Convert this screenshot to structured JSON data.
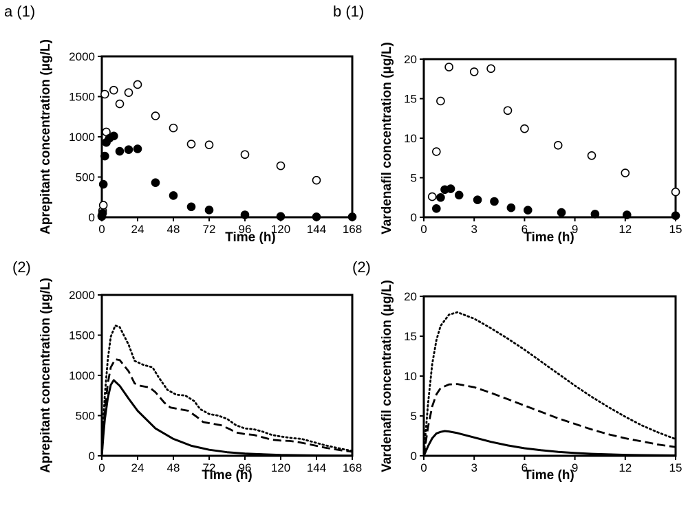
{
  "figure": {
    "panel_a1": "a (1)",
    "panel_b1": "b (1)",
    "panel_a2": "(2)",
    "panel_b2": "(2)"
  },
  "chart_data": [
    {
      "id": "a1",
      "type": "scatter",
      "xlabel": "Time (h)",
      "ylabel": "Aprepitant concentration (μg/L)",
      "xlim": [
        0,
        168
      ],
      "ylim": [
        0,
        2000
      ],
      "xticks": [
        0,
        24,
        48,
        72,
        96,
        120,
        144,
        168
      ],
      "yticks": [
        0,
        500,
        1000,
        1500,
        2000
      ],
      "grid": false,
      "series": [
        {
          "marker": "open-circle",
          "points": [
            [
              0,
              20
            ],
            [
              0.5,
              80
            ],
            [
              1,
              150
            ],
            [
              2,
              1530
            ],
            [
              3,
              1060
            ],
            [
              8,
              1580
            ],
            [
              12,
              1410
            ],
            [
              18,
              1550
            ],
            [
              24,
              1650
            ],
            [
              36,
              1260
            ],
            [
              48,
              1110
            ],
            [
              60,
              910
            ],
            [
              72,
              900
            ],
            [
              96,
              780
            ],
            [
              120,
              640
            ],
            [
              144,
              460
            ]
          ]
        },
        {
          "marker": "filled-circle",
          "points": [
            [
              0,
              10
            ],
            [
              0.5,
              50
            ],
            [
              1,
              410
            ],
            [
              2,
              760
            ],
            [
              3,
              930
            ],
            [
              5,
              980
            ],
            [
              8,
              1010
            ],
            [
              12,
              820
            ],
            [
              18,
              840
            ],
            [
              24,
              850
            ],
            [
              36,
              430
            ],
            [
              48,
              270
            ],
            [
              60,
              130
            ],
            [
              72,
              90
            ],
            [
              96,
              30
            ],
            [
              120,
              10
            ],
            [
              144,
              5
            ],
            [
              168,
              5
            ]
          ]
        }
      ]
    },
    {
      "id": "b1",
      "type": "scatter",
      "xlabel": "Time (h)",
      "ylabel": "Vardenafil concentration (μg/L)",
      "xlim": [
        0,
        15
      ],
      "ylim": [
        0,
        20
      ],
      "xticks": [
        0,
        3,
        6,
        9,
        12,
        15
      ],
      "yticks": [
        0,
        5,
        10,
        15,
        20
      ],
      "grid": false,
      "series": [
        {
          "marker": "open-circle",
          "points": [
            [
              0.5,
              2.6
            ],
            [
              0.75,
              8.3
            ],
            [
              1,
              14.7
            ],
            [
              1.5,
              19.0
            ],
            [
              3,
              18.4
            ],
            [
              4,
              18.8
            ],
            [
              5,
              13.5
            ],
            [
              6,
              11.2
            ],
            [
              8,
              9.1
            ],
            [
              10,
              7.8
            ],
            [
              12,
              5.6
            ],
            [
              15,
              3.2
            ]
          ]
        },
        {
          "marker": "filled-circle",
          "points": [
            [
              0.75,
              1.1
            ],
            [
              1,
              2.5
            ],
            [
              1.25,
              3.5
            ],
            [
              1.6,
              3.6
            ],
            [
              2.1,
              2.8
            ],
            [
              3.2,
              2.2
            ],
            [
              4.2,
              2.0
            ],
            [
              5.2,
              1.2
            ],
            [
              6.2,
              0.9
            ],
            [
              8.2,
              0.6
            ],
            [
              10.2,
              0.4
            ],
            [
              12.1,
              0.3
            ],
            [
              15,
              0.2
            ]
          ]
        }
      ]
    },
    {
      "id": "a2",
      "type": "line",
      "xlabel": "Time (h)",
      "ylabel": "Aprepitant concentration (μg/L)",
      "xlim": [
        0,
        168
      ],
      "ylim": [
        0,
        2000
      ],
      "xticks": [
        0,
        24,
        48,
        72,
        96,
        120,
        144,
        168
      ],
      "yticks": [
        0,
        500,
        1000,
        1500,
        2000
      ],
      "grid": false,
      "series": [
        {
          "style": "solid",
          "points": [
            [
              0,
              0
            ],
            [
              1,
              250
            ],
            [
              2,
              450
            ],
            [
              4,
              720
            ],
            [
              6,
              880
            ],
            [
              8,
              940
            ],
            [
              12,
              870
            ],
            [
              18,
              710
            ],
            [
              24,
              560
            ],
            [
              36,
              340
            ],
            [
              48,
              210
            ],
            [
              60,
              125
            ],
            [
              72,
              75
            ],
            [
              84,
              45
            ],
            [
              96,
              28
            ],
            [
              120,
              10
            ],
            [
              144,
              4
            ],
            [
              168,
              2
            ]
          ]
        },
        {
          "style": "dashed",
          "points": [
            [
              0,
              0
            ],
            [
              1,
              300
            ],
            [
              2,
              550
            ],
            [
              4,
              900
            ],
            [
              6,
              1100
            ],
            [
              9,
              1200
            ],
            [
              12,
              1190
            ],
            [
              18,
              1050
            ],
            [
              22,
              900
            ],
            [
              26,
              870
            ],
            [
              32,
              850
            ],
            [
              36,
              790
            ],
            [
              42,
              660
            ],
            [
              46,
              600
            ],
            [
              52,
              580
            ],
            [
              58,
              560
            ],
            [
              64,
              480
            ],
            [
              68,
              420
            ],
            [
              74,
              400
            ],
            [
              80,
              380
            ],
            [
              86,
              330
            ],
            [
              90,
              290
            ],
            [
              96,
              270
            ],
            [
              102,
              260
            ],
            [
              108,
              230
            ],
            [
              114,
              200
            ],
            [
              120,
              190
            ],
            [
              126,
              185
            ],
            [
              132,
              170
            ],
            [
              140,
              140
            ],
            [
              150,
              100
            ],
            [
              160,
              70
            ],
            [
              168,
              50
            ]
          ]
        },
        {
          "style": "dotted",
          "points": [
            [
              0,
              0
            ],
            [
              1,
              400
            ],
            [
              2,
              750
            ],
            [
              4,
              1200
            ],
            [
              6,
              1480
            ],
            [
              9,
              1620
            ],
            [
              12,
              1600
            ],
            [
              18,
              1380
            ],
            [
              22,
              1180
            ],
            [
              28,
              1130
            ],
            [
              34,
              1100
            ],
            [
              38,
              980
            ],
            [
              44,
              820
            ],
            [
              50,
              760
            ],
            [
              56,
              750
            ],
            [
              62,
              680
            ],
            [
              66,
              580
            ],
            [
              72,
              520
            ],
            [
              78,
              500
            ],
            [
              84,
              460
            ],
            [
              90,
              380
            ],
            [
              96,
              340
            ],
            [
              102,
              330
            ],
            [
              108,
              300
            ],
            [
              114,
              260
            ],
            [
              120,
              240
            ],
            [
              128,
              220
            ],
            [
              134,
              210
            ],
            [
              140,
              180
            ],
            [
              150,
              130
            ],
            [
              160,
              90
            ],
            [
              168,
              60
            ]
          ]
        }
      ]
    },
    {
      "id": "b2",
      "type": "line",
      "xlabel": "Time (h)",
      "ylabel": "Vardenafil concentration (μg/L)",
      "xlim": [
        0,
        15
      ],
      "ylim": [
        0,
        20
      ],
      "xticks": [
        0,
        3,
        6,
        9,
        12,
        15
      ],
      "yticks": [
        0,
        5,
        10,
        15,
        20
      ],
      "grid": false,
      "series": [
        {
          "style": "solid",
          "points": [
            [
              0,
              0
            ],
            [
              0.25,
              1.2
            ],
            [
              0.5,
              2.2
            ],
            [
              0.75,
              2.8
            ],
            [
              1,
              3.0
            ],
            [
              1.25,
              3.1
            ],
            [
              1.5,
              3.05
            ],
            [
              2,
              2.85
            ],
            [
              3,
              2.3
            ],
            [
              4,
              1.75
            ],
            [
              5,
              1.3
            ],
            [
              6,
              0.95
            ],
            [
              7,
              0.7
            ],
            [
              8,
              0.5
            ],
            [
              9,
              0.35
            ],
            [
              10,
              0.25
            ],
            [
              11,
              0.18
            ],
            [
              12,
              0.12
            ],
            [
              13,
              0.09
            ],
            [
              14,
              0.06
            ],
            [
              15,
              0.04
            ]
          ]
        },
        {
          "style": "dashed",
          "points": [
            [
              0,
              0
            ],
            [
              0.25,
              3.6
            ],
            [
              0.5,
              6.2
            ],
            [
              0.75,
              7.7
            ],
            [
              1,
              8.5
            ],
            [
              1.5,
              8.95
            ],
            [
              2,
              9.0
            ],
            [
              3,
              8.6
            ],
            [
              4,
              7.9
            ],
            [
              5,
              7.1
            ],
            [
              6,
              6.3
            ],
            [
              7,
              5.5
            ],
            [
              8,
              4.7
            ],
            [
              9,
              4.0
            ],
            [
              10,
              3.3
            ],
            [
              11,
              2.7
            ],
            [
              12,
              2.2
            ],
            [
              13,
              1.8
            ],
            [
              14,
              1.4
            ],
            [
              15,
              1.1
            ]
          ]
        },
        {
          "style": "dotted",
          "points": [
            [
              0,
              0
            ],
            [
              0.25,
              6.5
            ],
            [
              0.5,
              11.5
            ],
            [
              0.75,
              14.5
            ],
            [
              1,
              16.3
            ],
            [
              1.5,
              17.7
            ],
            [
              2,
              18.0
            ],
            [
              3,
              17.2
            ],
            [
              4,
              16.0
            ],
            [
              5,
              14.7
            ],
            [
              6,
              13.3
            ],
            [
              7,
              11.8
            ],
            [
              8,
              10.3
            ],
            [
              9,
              8.8
            ],
            [
              10,
              7.4
            ],
            [
              11,
              6.1
            ],
            [
              12,
              4.9
            ],
            [
              13,
              3.8
            ],
            [
              14,
              2.9
            ],
            [
              15,
              2.1
            ]
          ]
        }
      ]
    }
  ]
}
